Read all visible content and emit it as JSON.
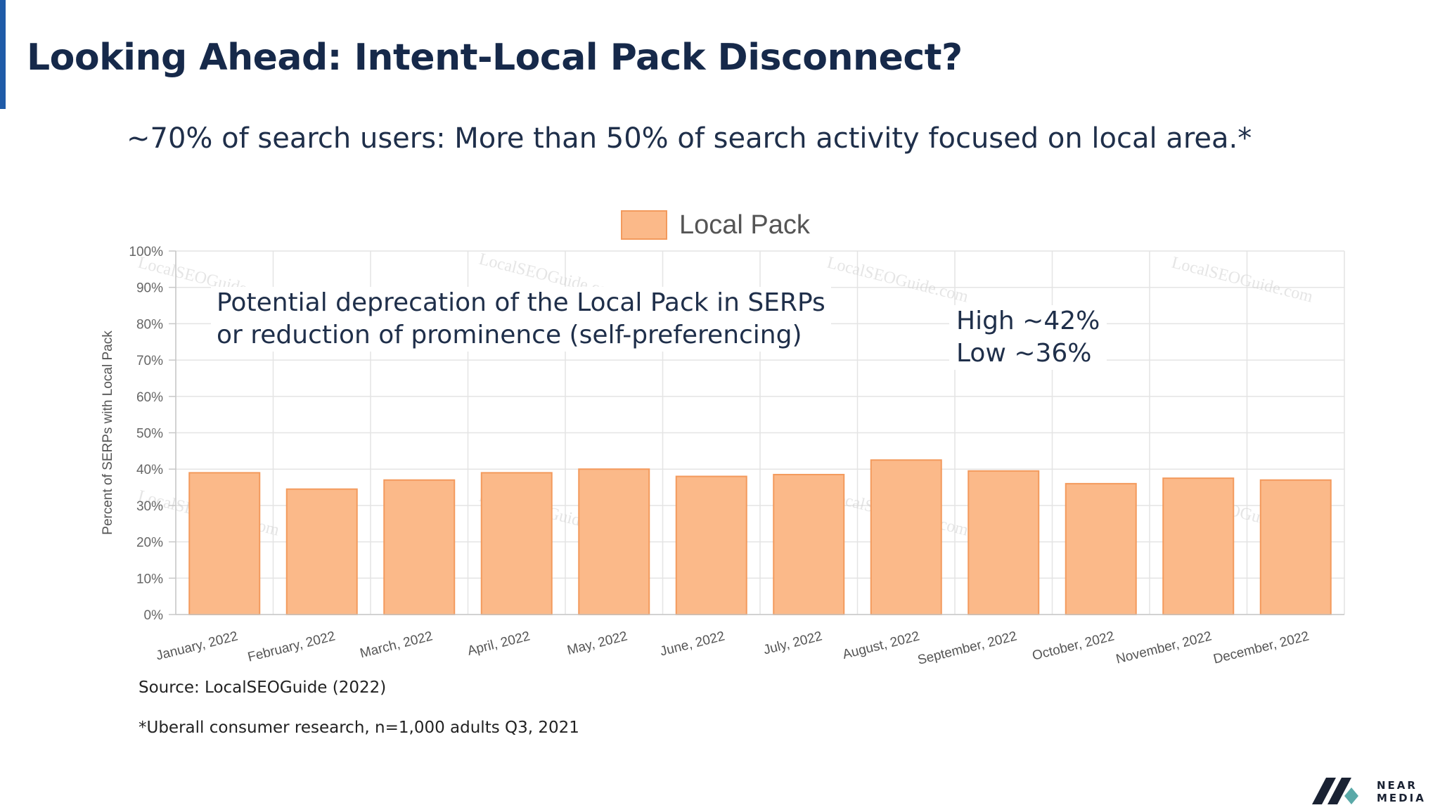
{
  "slide": {
    "title": "Looking Ahead: Intent-Local Pack Disconnect?",
    "subtitle": "~70% of search users: More than 50% of search activity focused on local area.*",
    "annotation_left": [
      "Potential deprecation of the Local Pack in SERPs",
      "or reduction of prominence (self-preferencing)"
    ],
    "annotation_right": [
      "High ~42%",
      "Low ~36%"
    ],
    "footnote_source": "Source: LocalSEOGuide (2022)",
    "footnote_research": "*Uberall consumer research, n=1,000 adults Q3, 2021",
    "logo": {
      "line1": "NEAR",
      "line2": "MEDIA"
    },
    "watermark": "LocalSEOGuide.com",
    "colors": {
      "accent": "#1f5ba8",
      "title": "#16294a",
      "bar_fill": "#fbb989",
      "bar_border": "#f39a5d"
    }
  },
  "chart_data": {
    "type": "bar",
    "title": "",
    "legend": {
      "label": "Local Pack",
      "position": "top-center"
    },
    "ylabel": "Percent of SERPs with Local Pack",
    "xlabel": "",
    "ylim": [
      0,
      100
    ],
    "y_ticks": [
      "0%",
      "10%",
      "20%",
      "30%",
      "40%",
      "50%",
      "60%",
      "70%",
      "80%",
      "90%",
      "100%"
    ],
    "grid": true,
    "categories": [
      "January, 2022",
      "February, 2022",
      "March, 2022",
      "April, 2022",
      "May, 2022",
      "June, 2022",
      "July, 2022",
      "August, 2022",
      "September, 2022",
      "October, 2022",
      "November, 2022",
      "December, 2022"
    ],
    "series": [
      {
        "name": "Local Pack",
        "values": [
          39,
          34.5,
          37,
          39,
          40,
          38,
          38.5,
          42.5,
          39.5,
          36,
          37.5,
          37
        ]
      }
    ]
  }
}
